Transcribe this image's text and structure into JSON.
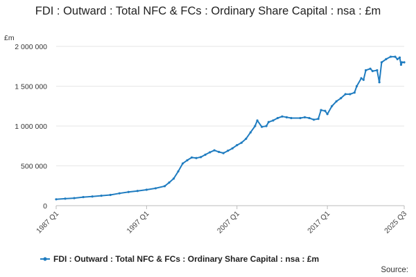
{
  "chart_data": {
    "type": "line",
    "title": "FDI : Outward : Total NFC & FCs : Ordinary Share Capital : nsa : £m",
    "xlabel": "",
    "ylabel": "£m",
    "ylim": [
      0,
      2000000
    ],
    "y_ticks": [
      0,
      500000,
      1000000,
      1500000,
      2000000
    ],
    "y_tick_labels": [
      "0",
      "500 000",
      "1 000 000",
      "1 500 000",
      "2 000 000"
    ],
    "x_tick_labels": [
      "1987 Q1",
      "1997 Q1",
      "2007 Q1",
      "2017 Q1",
      "2025 Q3"
    ],
    "x_tick_years": [
      1987.0,
      1997.0,
      2007.0,
      2017.0,
      2025.5
    ],
    "xlim_years": [
      1987.0,
      2025.5
    ],
    "grid": true,
    "legend_position": "bottom",
    "series": [
      {
        "name": "FDI : Outward : Total NFC & FCs : Ordinary Share Capital : nsa : £m",
        "color": "#1f7cc0",
        "points": [
          [
            1987.0,
            80000
          ],
          [
            1988.0,
            88000
          ],
          [
            1989.0,
            95000
          ],
          [
            1990.0,
            108000
          ],
          [
            1991.0,
            115000
          ],
          [
            1992.0,
            125000
          ],
          [
            1993.0,
            135000
          ],
          [
            1994.0,
            155000
          ],
          [
            1995.0,
            172000
          ],
          [
            1996.0,
            185000
          ],
          [
            1997.0,
            200000
          ],
          [
            1998.0,
            218000
          ],
          [
            1999.0,
            245000
          ],
          [
            1999.5,
            290000
          ],
          [
            2000.0,
            340000
          ],
          [
            2000.5,
            430000
          ],
          [
            2001.0,
            530000
          ],
          [
            2001.5,
            570000
          ],
          [
            2002.0,
            605000
          ],
          [
            2002.5,
            598000
          ],
          [
            2003.0,
            610000
          ],
          [
            2003.5,
            640000
          ],
          [
            2004.0,
            670000
          ],
          [
            2004.5,
            695000
          ],
          [
            2005.0,
            675000
          ],
          [
            2005.5,
            660000
          ],
          [
            2006.0,
            690000
          ],
          [
            2006.5,
            720000
          ],
          [
            2007.0,
            760000
          ],
          [
            2007.5,
            790000
          ],
          [
            2008.0,
            840000
          ],
          [
            2008.5,
            920000
          ],
          [
            2009.0,
            1000000
          ],
          [
            2009.25,
            1070000
          ],
          [
            2009.75,
            990000
          ],
          [
            2010.25,
            1000000
          ],
          [
            2010.5,
            1050000
          ],
          [
            2011.0,
            1070000
          ],
          [
            2011.5,
            1100000
          ],
          [
            2012.0,
            1120000
          ],
          [
            2012.5,
            1110000
          ],
          [
            2013.0,
            1100000
          ],
          [
            2014.0,
            1100000
          ],
          [
            2014.5,
            1110000
          ],
          [
            2015.0,
            1100000
          ],
          [
            2015.5,
            1080000
          ],
          [
            2016.0,
            1090000
          ],
          [
            2016.3,
            1200000
          ],
          [
            2016.75,
            1190000
          ],
          [
            2017.0,
            1150000
          ],
          [
            2017.5,
            1250000
          ],
          [
            2018.0,
            1310000
          ],
          [
            2018.5,
            1350000
          ],
          [
            2019.0,
            1400000
          ],
          [
            2019.5,
            1400000
          ],
          [
            2020.0,
            1420000
          ],
          [
            2020.25,
            1500000
          ],
          [
            2020.75,
            1600000
          ],
          [
            2021.0,
            1580000
          ],
          [
            2021.25,
            1700000
          ],
          [
            2021.75,
            1720000
          ],
          [
            2022.0,
            1690000
          ],
          [
            2022.5,
            1700000
          ],
          [
            2022.75,
            1550000
          ],
          [
            2023.0,
            1800000
          ],
          [
            2023.5,
            1840000
          ],
          [
            2024.0,
            1870000
          ],
          [
            2024.5,
            1870000
          ],
          [
            2024.75,
            1840000
          ],
          [
            2025.0,
            1860000
          ],
          [
            2025.15,
            1770000
          ],
          [
            2025.25,
            1800000
          ],
          [
            2025.5,
            1800000
          ]
        ]
      }
    ]
  },
  "source_label": "Source:"
}
